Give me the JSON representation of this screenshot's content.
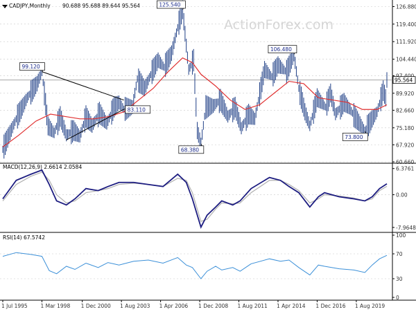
{
  "header": {
    "symbol": "CADJPY,Monthly",
    "ohlc": "90.688 95.688 89.644 95.564",
    "watermark": "ActionForex.com"
  },
  "colors": {
    "price": "#1f3f86",
    "ma": "#e03030",
    "macd": "#1c1c80",
    "signal": "#b0b0b0",
    "rsi": "#3a8fd8",
    "trendline": "#000000",
    "grid": "#c8c8c8",
    "axis_text": "#333333"
  },
  "chart_data": [
    {
      "type": "bar",
      "subtype": "ohlc",
      "title": "CADJPY,Monthly",
      "ylim": [
        60.66,
        128.5
      ],
      "y_ticks": [
        "126.880",
        "119.400",
        "111.920",
        "104.440",
        "97.400",
        "89.920",
        "82.660",
        "75.180",
        "67.920",
        "60.660"
      ],
      "last_price_label": "95.564",
      "current_price": 95.564,
      "x_range": [
        "1995-07",
        "2021-09"
      ],
      "series": [
        {
          "name": "price",
          "points": [
            [
              "1995-07",
              66.0
            ],
            [
              "1996-06",
              79.0
            ],
            [
              "1997-03",
              88.0
            ],
            [
              "1997-11",
              94.0
            ],
            [
              "1998-03",
              99.12
            ],
            [
              "1998-08",
              76.0
            ],
            [
              "1999-01",
              73.0
            ],
            [
              "1999-06",
              80.0
            ],
            [
              "1999-11",
              72.0
            ],
            [
              "2000-05",
              74.0
            ],
            [
              "2000-10",
              71.5
            ],
            [
              "2001-03",
              80.0
            ],
            [
              "2001-08",
              76.0
            ],
            [
              "2002-02",
              81.5
            ],
            [
              "2002-08",
              77.0
            ],
            [
              "2003-02",
              84.0
            ],
            [
              "2003-06",
              86.0
            ],
            [
              "2003-10",
              83.11
            ],
            [
              "2004-05",
              84.0
            ],
            [
              "2004-09",
              96.0
            ],
            [
              "2005-03",
              92.0
            ],
            [
              "2005-09",
              99.0
            ],
            [
              "2006-02",
              104.0
            ],
            [
              "2006-07",
              101.0
            ],
            [
              "2007-01",
              107.0
            ],
            [
              "2007-07",
              120.0
            ],
            [
              "2007-10",
              125.54
            ],
            [
              "2008-03",
              100.0
            ],
            [
              "2008-07",
              104.0
            ],
            [
              "2008-10",
              74.0
            ],
            [
              "2009-01",
              68.38
            ],
            [
              "2009-05",
              84.0
            ],
            [
              "2009-11",
              84.5
            ],
            [
              "2010-05",
              87.0
            ],
            [
              "2010-11",
              80.0
            ],
            [
              "2011-05",
              84.0
            ],
            [
              "2011-10",
              75.0
            ],
            [
              "2012-04",
              81.0
            ],
            [
              "2012-09",
              79.0
            ],
            [
              "2013-05",
              100.0
            ],
            [
              "2013-11",
              97.0
            ],
            [
              "2014-04",
              102.0
            ],
            [
              "2014-11",
              99.0
            ],
            [
              "2015-05",
              106.48
            ],
            [
              "2015-09",
              92.0
            ],
            [
              "2016-02",
              82.0
            ],
            [
              "2016-06",
              76.0
            ],
            [
              "2016-12",
              88.0
            ],
            [
              "2017-07",
              84.0
            ],
            [
              "2017-11",
              90.0
            ],
            [
              "2018-03",
              81.0
            ],
            [
              "2018-10",
              86.0
            ],
            [
              "2019-03",
              83.0
            ],
            [
              "2019-08",
              79.0
            ],
            [
              "2020-03",
              73.8
            ],
            [
              "2020-09",
              79.0
            ],
            [
              "2021-01",
              82.0
            ],
            [
              "2021-06",
              91.0
            ],
            [
              "2021-08",
              88.0
            ],
            [
              "2021-09",
              95.564
            ]
          ]
        },
        {
          "name": "MA",
          "points": [
            [
              "1995-07",
              67.0
            ],
            [
              "1996-08",
              72.0
            ],
            [
              "1997-10",
              78.0
            ],
            [
              "1998-10",
              81.0
            ],
            [
              "1999-10",
              80.0
            ],
            [
              "2000-10",
              79.0
            ],
            [
              "2001-10",
              79.0
            ],
            [
              "2002-10",
              80.0
            ],
            [
              "2003-10",
              82.0
            ],
            [
              "2004-10",
              87.0
            ],
            [
              "2005-10",
              92.0
            ],
            [
              "2006-10",
              99.0
            ],
            [
              "2007-10",
              105.0
            ],
            [
              "2008-06",
              103.0
            ],
            [
              "2009-01",
              98.0
            ],
            [
              "2010-01",
              93.0
            ],
            [
              "2011-01",
              87.0
            ],
            [
              "2012-01",
              83.0
            ],
            [
              "2013-01",
              85.0
            ],
            [
              "2014-01",
              90.0
            ],
            [
              "2015-01",
              95.0
            ],
            [
              "2016-01",
              94.0
            ],
            [
              "2017-01",
              88.0
            ],
            [
              "2018-01",
              87.0
            ],
            [
              "2019-01",
              86.0
            ],
            [
              "2020-01",
              83.0
            ],
            [
              "2021-01",
              83.0
            ],
            [
              "2021-09",
              85.0
            ]
          ]
        }
      ],
      "annotations": [
        {
          "label": "99.120",
          "date": "1998-03",
          "value": 99.12,
          "position": "above"
        },
        {
          "label": "83.110",
          "date": "2003-10",
          "value": 83.11,
          "position": "right"
        },
        {
          "label": "125.540",
          "date": "2007-10",
          "value": 125.54,
          "position": "above"
        },
        {
          "label": "68.380",
          "date": "2009-01",
          "value": 68.38,
          "position": "below"
        },
        {
          "label": "106.480",
          "date": "2015-05",
          "value": 106.48,
          "position": "above"
        },
        {
          "label": "73.800",
          "date": "2020-03",
          "value": 73.8,
          "position": "below"
        }
      ],
      "trendlines": [
        {
          "from": [
            "1998-03",
            99.12
          ],
          "to": [
            "2003-10",
            87.0
          ]
        },
        {
          "from": [
            "1999-11",
            70.0
          ],
          "to": [
            "2003-10",
            83.11
          ]
        }
      ]
    },
    {
      "type": "line",
      "title": "MACD(12,26,9) 2.6614 2.0584",
      "ylim": [
        -8.5,
        7.0
      ],
      "y_ticks": [
        "6.3761",
        "0.00",
        "-7.9648"
      ],
      "series": [
        {
          "name": "MACD",
          "points": [
            [
              "1995-07",
              -1.0
            ],
            [
              "1996-06",
              3.5
            ],
            [
              "1997-06",
              5.0
            ],
            [
              "1998-03",
              6.0
            ],
            [
              "1998-09",
              2.5
            ],
            [
              "1999-03",
              -1.5
            ],
            [
              "1999-11",
              -2.5
            ],
            [
              "2000-06",
              -1.0
            ],
            [
              "2001-03",
              1.5
            ],
            [
              "2002-01",
              1.0
            ],
            [
              "2002-09",
              2.0
            ],
            [
              "2003-06",
              3.0
            ],
            [
              "2004-06",
              3.0
            ],
            [
              "2005-06",
              2.5
            ],
            [
              "2006-06",
              2.0
            ],
            [
              "2007-06",
              5.0
            ],
            [
              "2008-01",
              3.0
            ],
            [
              "2008-06",
              -1.0
            ],
            [
              "2009-01",
              -7.9
            ],
            [
              "2009-06",
              -5.0
            ],
            [
              "2010-01",
              -3.0
            ],
            [
              "2010-06",
              -1.5
            ],
            [
              "2011-03",
              -2.5
            ],
            [
              "2011-09",
              -1.5
            ],
            [
              "2012-06",
              1.5
            ],
            [
              "2013-09",
              4.2
            ],
            [
              "2014-06",
              3.5
            ],
            [
              "2015-01",
              2.0
            ],
            [
              "2015-09",
              0.5
            ],
            [
              "2016-06",
              -3.0
            ],
            [
              "2017-01",
              -0.5
            ],
            [
              "2017-06",
              0.5
            ],
            [
              "2018-06",
              -0.5
            ],
            [
              "2019-06",
              -1.0
            ],
            [
              "2020-03",
              -1.5
            ],
            [
              "2020-09",
              -0.5
            ],
            [
              "2021-03",
              1.5
            ],
            [
              "2021-09",
              2.6614
            ]
          ]
        },
        {
          "name": "Signal",
          "points": [
            [
              "1995-07",
              -1.5
            ],
            [
              "1996-06",
              2.5
            ],
            [
              "1997-06",
              4.5
            ],
            [
              "1998-03",
              5.5
            ],
            [
              "1998-09",
              3.5
            ],
            [
              "1999-03",
              0.0
            ],
            [
              "1999-11",
              -2.0
            ],
            [
              "2000-06",
              -1.5
            ],
            [
              "2001-03",
              0.5
            ],
            [
              "2002-01",
              1.0
            ],
            [
              "2002-09",
              1.5
            ],
            [
              "2003-06",
              2.5
            ],
            [
              "2004-06",
              2.8
            ],
            [
              "2005-06",
              2.5
            ],
            [
              "2006-06",
              2.0
            ],
            [
              "2007-06",
              4.0
            ],
            [
              "2008-01",
              3.5
            ],
            [
              "2008-06",
              0.5
            ],
            [
              "2009-01",
              -6.5
            ],
            [
              "2009-06",
              -6.0
            ],
            [
              "2010-01",
              -3.5
            ],
            [
              "2010-06",
              -2.0
            ],
            [
              "2011-03",
              -2.2
            ],
            [
              "2011-09",
              -2.0
            ],
            [
              "2012-06",
              0.5
            ],
            [
              "2013-09",
              3.5
            ],
            [
              "2014-06",
              3.5
            ],
            [
              "2015-01",
              2.5
            ],
            [
              "2015-09",
              1.0
            ],
            [
              "2016-06",
              -2.0
            ],
            [
              "2017-01",
              -1.0
            ],
            [
              "2017-06",
              0.0
            ],
            [
              "2018-06",
              -0.3
            ],
            [
              "2019-06",
              -0.8
            ],
            [
              "2020-03",
              -1.5
            ],
            [
              "2020-09",
              -1.0
            ],
            [
              "2021-03",
              1.0
            ],
            [
              "2021-09",
              2.0584
            ]
          ]
        }
      ]
    },
    {
      "type": "line",
      "title": "RSI(14) 67.5742",
      "ylim": [
        0,
        100
      ],
      "y_ticks": [
        "100",
        "70",
        "30",
        "0"
      ],
      "reference_lines": [
        70,
        30
      ],
      "series": [
        {
          "name": "RSI",
          "points": [
            [
              "1995-07",
              66.0
            ],
            [
              "1996-06",
              72.0
            ],
            [
              "1997-06",
              69.0
            ],
            [
              "1998-03",
              66.0
            ],
            [
              "1998-09",
              43.0
            ],
            [
              "1999-03",
              38.0
            ],
            [
              "1999-11",
              50.0
            ],
            [
              "2000-06",
              45.0
            ],
            [
              "2001-03",
              55.0
            ],
            [
              "2002-01",
              48.0
            ],
            [
              "2002-09",
              56.0
            ],
            [
              "2003-06",
              52.0
            ],
            [
              "2004-06",
              58.0
            ],
            [
              "2005-06",
              60.0
            ],
            [
              "2006-06",
              55.0
            ],
            [
              "2007-06",
              64.0
            ],
            [
              "2008-01",
              52.0
            ],
            [
              "2008-06",
              48.0
            ],
            [
              "2009-01",
              30.0
            ],
            [
              "2009-06",
              42.0
            ],
            [
              "2010-01",
              50.0
            ],
            [
              "2010-06",
              44.0
            ],
            [
              "2011-03",
              48.0
            ],
            [
              "2011-09",
              42.0
            ],
            [
              "2012-06",
              54.0
            ],
            [
              "2013-09",
              62.0
            ],
            [
              "2014-06",
              58.0
            ],
            [
              "2015-01",
              60.0
            ],
            [
              "2015-09",
              48.0
            ],
            [
              "2016-06",
              36.0
            ],
            [
              "2017-01",
              52.0
            ],
            [
              "2017-06",
              50.0
            ],
            [
              "2018-06",
              46.0
            ],
            [
              "2019-06",
              44.0
            ],
            [
              "2020-03",
              40.0
            ],
            [
              "2020-09",
              52.0
            ],
            [
              "2021-03",
              62.0
            ],
            [
              "2021-09",
              67.5742
            ]
          ]
        }
      ]
    }
  ],
  "x_axis": {
    "ticks": [
      {
        "label": "1 Jul 1995",
        "date": "1995-07"
      },
      {
        "label": "1 Mar 1998",
        "date": "1998-03"
      },
      {
        "label": "1 Dec 2000",
        "date": "2000-12"
      },
      {
        "label": "1 Aug 2003",
        "date": "2003-08"
      },
      {
        "label": "1 Apr 2006",
        "date": "2006-04"
      },
      {
        "label": "1 Dec 2008",
        "date": "2008-12"
      },
      {
        "label": "1 Aug 2011",
        "date": "2011-08"
      },
      {
        "label": "1 Apr 2014",
        "date": "2014-04"
      },
      {
        "label": "1 Dec 2016",
        "date": "2016-12"
      },
      {
        "label": "1 Aug 2019",
        "date": "2019-08"
      }
    ]
  }
}
